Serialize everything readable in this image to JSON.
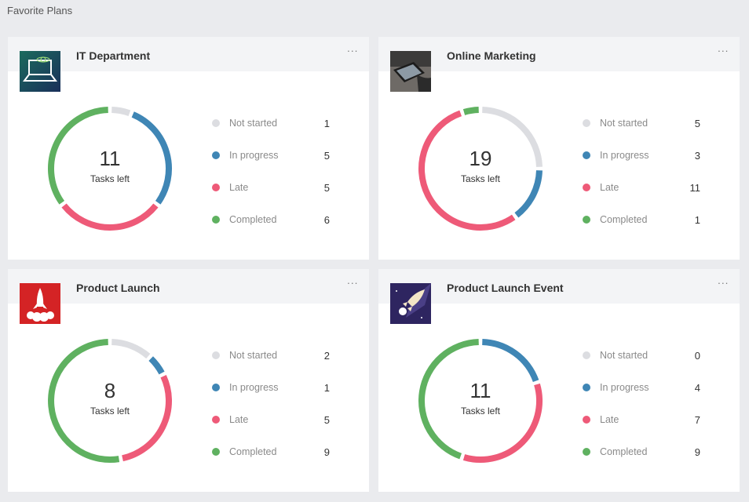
{
  "section_title": "Favorite Plans",
  "center_label": "Tasks left",
  "status_labels": [
    "Not started",
    "In progress",
    "Late",
    "Completed"
  ],
  "status_colors": [
    "#dcdde1",
    "#3f86b5",
    "#ee5a78",
    "#5fb160"
  ],
  "more_label": "···",
  "plans": [
    {
      "title": "IT Department",
      "thumbnail": "laptop-network-icon",
      "tasks_left": "11",
      "counts": [
        1,
        5,
        5,
        6
      ]
    },
    {
      "title": "Online Marketing",
      "thumbnail": "tablet-photo",
      "tasks_left": "19",
      "counts": [
        5,
        3,
        11,
        1
      ]
    },
    {
      "title": "Product Launch",
      "thumbnail": "rocket-icon",
      "tasks_left": "8",
      "counts": [
        2,
        1,
        5,
        9
      ]
    },
    {
      "title": "Product Launch Event",
      "thumbnail": "rocket-space-icon",
      "tasks_left": "11",
      "counts": [
        0,
        4,
        7,
        9
      ]
    }
  ]
}
